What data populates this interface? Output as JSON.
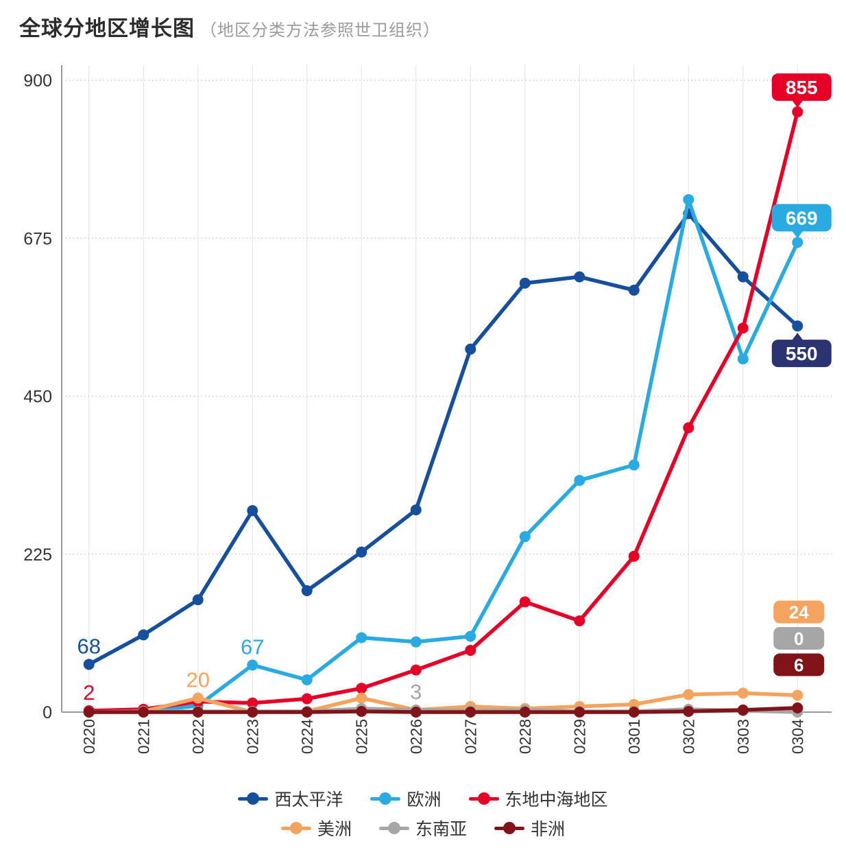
{
  "page": {
    "title": "全球分地区增长图",
    "subtitle": "（地区分类方法参照世卫组织）"
  },
  "chart_data": {
    "type": "line",
    "title": "全球分地区增长图",
    "subtitle": "（地区分类方法参照世卫组织）",
    "categories": [
      "0220",
      "0221",
      "0222",
      "0223",
      "0224",
      "0225",
      "0226",
      "0227",
      "0228",
      "0229",
      "0301",
      "0302",
      "0303",
      "0304"
    ],
    "ylim": [
      0,
      900
    ],
    "yticks": [
      0,
      225,
      450,
      675,
      900
    ],
    "grid": {
      "horizontal": "dotted",
      "vertical": "solid"
    },
    "legend_position": "bottom",
    "legend_rows": [
      [
        "西太平洋",
        "欧洲",
        "东地中海地区"
      ],
      [
        "美洲",
        "东南亚",
        "非洲"
      ]
    ],
    "series": [
      {
        "name": "西太平洋",
        "color": "#164f9c",
        "values": [
          68,
          110,
          160,
          287,
          173,
          228,
          288,
          517,
          611,
          620,
          601,
          710,
          620,
          550
        ],
        "end_badge": {
          "text": "550",
          "placement": "below",
          "color": "#2b3470"
        }
      },
      {
        "name": "欧洲",
        "color": "#29abe2",
        "values": [
          0,
          1,
          9,
          67,
          46,
          106,
          100,
          108,
          250,
          330,
          352,
          730,
          503,
          669
        ],
        "end_badge": {
          "text": "669",
          "placement": "above",
          "color": "#29abe2"
        }
      },
      {
        "name": "东地中海地区",
        "color": "#e60028",
        "values": [
          2,
          4,
          15,
          13,
          19,
          34,
          60,
          88,
          157,
          130,
          222,
          405,
          547,
          855
        ],
        "end_badge": {
          "text": "855",
          "placement": "above",
          "color": "#e60028"
        }
      },
      {
        "name": "美洲",
        "color": "#f5a45f",
        "values": [
          0,
          1,
          20,
          0,
          1,
          20,
          3,
          8,
          5,
          8,
          11,
          25,
          27,
          24
        ],
        "end_badge": {
          "text": "24",
          "placement": "stack-1",
          "color": "#f5a45f"
        }
      },
      {
        "name": "东南亚",
        "color": "#a6a6a6",
        "values": [
          0,
          1,
          1,
          1,
          1,
          5,
          3,
          2,
          3,
          1,
          1,
          4,
          2,
          0
        ],
        "end_badge": {
          "text": "0",
          "placement": "stack-2",
          "color": "#a6a6a6"
        }
      },
      {
        "name": "非洲",
        "color": "#801418",
        "values": [
          0,
          0,
          0,
          0,
          0,
          1,
          0,
          0,
          0,
          0,
          0,
          1,
          3,
          6
        ],
        "end_badge": {
          "text": "6",
          "placement": "stack-3",
          "color": "#801418"
        }
      }
    ],
    "point_labels": [
      {
        "series": "西太平洋",
        "index": 0,
        "text": "68"
      },
      {
        "series": "东地中海地区",
        "index": 0,
        "text": "2"
      },
      {
        "series": "美洲",
        "index": 2,
        "text": "20"
      },
      {
        "series": "欧洲",
        "index": 3,
        "text": "67"
      },
      {
        "series": "东南亚",
        "index": 6,
        "text": "3"
      }
    ]
  }
}
